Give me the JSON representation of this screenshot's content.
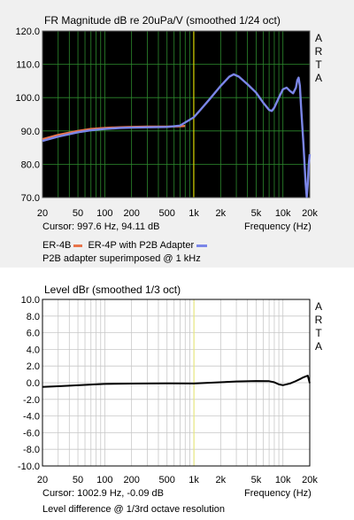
{
  "chart_data": [
    {
      "type": "line",
      "title": "FR Magnitude dB re 20uPa/V (smoothed 1/24 oct)",
      "xlabel": "Frequency (Hz)",
      "ylabel": "",
      "xscale": "log",
      "xlim": [
        20,
        20000
      ],
      "ylim": [
        70,
        120
      ],
      "x_ticks": [
        "20",
        "50",
        "100",
        "200",
        "500",
        "1k",
        "2k",
        "5k",
        "10k",
        "20k"
      ],
      "y_ticks": [
        "120.0",
        "110.0",
        "100.0",
        "90.0",
        "80.0",
        "70.0"
      ],
      "grid": true,
      "background": "#000000",
      "grid_color": "#2d8a2d",
      "cursor_line_color": "#d8d800",
      "cursor_x": 997.6,
      "cursor_readout": "Cursor: 997.6 Hz, 94.11 dB",
      "watermark": "ARTA",
      "series": [
        {
          "name": "ER-4B",
          "color": "#e8744a",
          "x": [
            20,
            30,
            50,
            70,
            100,
            150,
            200,
            300,
            500,
            700,
            800
          ],
          "y": [
            87.5,
            88.8,
            90.0,
            90.6,
            90.9,
            91.1,
            91.2,
            91.3,
            91.3,
            91.4,
            91.5
          ]
        },
        {
          "name": "ER-4P with P2B Adapter",
          "color": "#7b86e8",
          "x": [
            20,
            30,
            50,
            70,
            100,
            150,
            200,
            300,
            500,
            700,
            1000,
            1200,
            1500,
            2000,
            2500,
            2800,
            3200,
            4000,
            5000,
            6000,
            7000,
            7500,
            8000,
            9000,
            10000,
            11000,
            12000,
            13000,
            14000,
            14500,
            15000,
            15500,
            16000,
            17000,
            18000,
            18500,
            19000,
            19500,
            20000
          ],
          "y": [
            87.0,
            88.3,
            89.6,
            90.2,
            90.6,
            90.9,
            91.0,
            91.1,
            91.2,
            91.6,
            94.1,
            96.5,
            99.5,
            103.5,
            106.3,
            107.0,
            106.3,
            104.0,
            101.5,
            98.5,
            96.3,
            96.0,
            97.0,
            100.0,
            102.5,
            103.0,
            102.0,
            101.3,
            103.0,
            105.2,
            106.0,
            103.5,
            97.0,
            86.0,
            74.0,
            70.2,
            74.0,
            80.0,
            83.0
          ]
        }
      ],
      "legend_placement": "below",
      "caption": "P2B adapter superimposed @ 1 kHz"
    },
    {
      "type": "line",
      "title": "Level dBr (smoothed 1/3 oct)",
      "xlabel": "Frequency (Hz)",
      "ylabel": "",
      "xscale": "log",
      "xlim": [
        20,
        20000
      ],
      "ylim": [
        -10,
        10
      ],
      "x_ticks": [
        "20",
        "50",
        "100",
        "200",
        "500",
        "1k",
        "2k",
        "5k",
        "10k",
        "20k"
      ],
      "y_ticks": [
        "10.0",
        "8.0",
        "6.0",
        "4.0",
        "2.0",
        "0.0",
        "-2.0",
        "-4.0",
        "-6.0",
        "-8.0",
        "-10.0"
      ],
      "grid": true,
      "background": "#ffffff",
      "grid_color": "#c8c8c8",
      "cursor_line_color": "#e8e880",
      "cursor_x": 1002.9,
      "cursor_readout": "Cursor: 1002.9 Hz, -0.09 dB",
      "watermark": "ARTA",
      "series": [
        {
          "name": "",
          "color": "#000000",
          "x": [
            20,
            30,
            50,
            70,
            100,
            200,
            500,
            1000,
            2000,
            3000,
            5000,
            7000,
            8000,
            9000,
            10000,
            12000,
            14000,
            16000,
            17000,
            18000,
            19000,
            20000
          ],
          "y": [
            -0.5,
            -0.42,
            -0.3,
            -0.22,
            -0.15,
            -0.1,
            -0.08,
            -0.09,
            0.05,
            0.15,
            0.2,
            0.18,
            0.05,
            -0.2,
            -0.3,
            -0.1,
            0.2,
            0.5,
            0.65,
            0.75,
            0.85,
            -0.05
          ]
        }
      ],
      "caption": "Level difference @ 1/3rd octave resolution"
    }
  ]
}
